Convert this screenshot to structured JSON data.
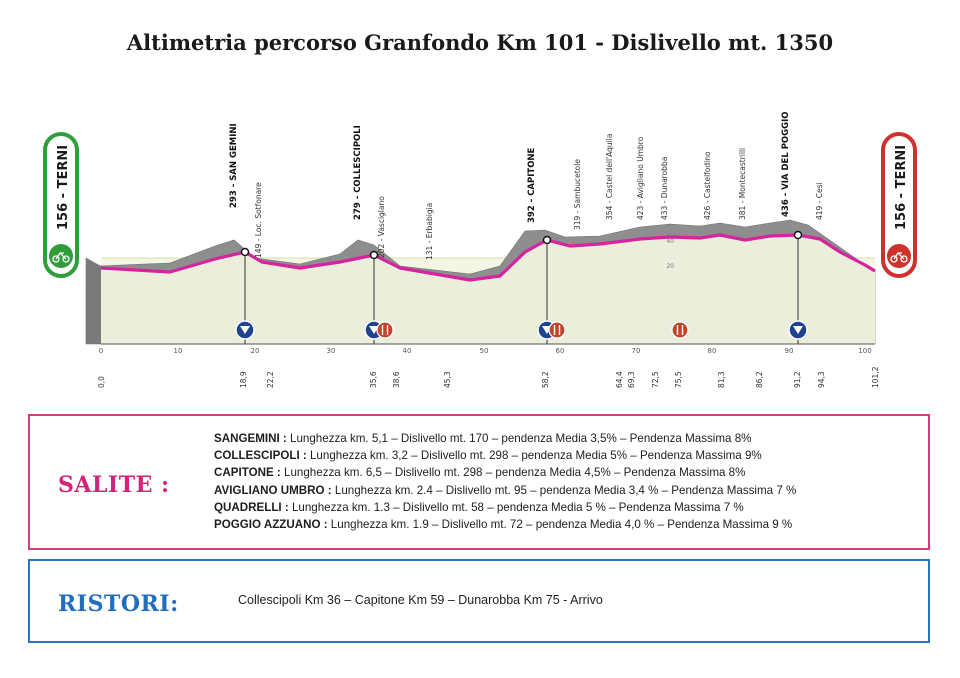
{
  "title": "Altimetria percorso Granfondo Km 101 - Dislivello mt. 1350",
  "profile": {
    "start_badge": "156 - TERNI",
    "finish_badge": "156 - TERNI",
    "colors": {
      "terrain": "#8e8e8e",
      "route": "#d6249f",
      "band": "#f2f6e2",
      "band_line": "#c9d88a",
      "refuel": "#f5a96a",
      "gpm": "#20428f",
      "start": "#2f9e3a",
      "finish": "#d0312d"
    },
    "tick_labels": [
      "0",
      "10",
      "20",
      "30",
      "40",
      "50",
      "60",
      "70",
      "80",
      "90",
      "100"
    ],
    "alt_scale": [
      "20",
      "40"
    ],
    "waypoints": [
      {
        "label": "0,0"
      },
      {
        "label": "293 - SAN GEMINI",
        "major": true
      },
      {
        "label": "149 - Loc. Sotfonare"
      },
      {
        "label": "18,9"
      },
      {
        "label": "22,2"
      },
      {
        "label": "279 - COLLESCIPOLI",
        "major": true
      },
      {
        "label": "35,6"
      },
      {
        "label": "202 - Vasciglano"
      },
      {
        "label": "38,6"
      },
      {
        "label": "131 - Erbabigia"
      },
      {
        "label": "45,3"
      },
      {
        "label": "392 - CAPITONE",
        "major": true
      },
      {
        "label": "58,2"
      },
      {
        "label": "319 - Sambucetole"
      },
      {
        "label": "354 - Castel dell'Aquila"
      },
      {
        "label": "64,4"
      },
      {
        "label": "423 - Avigliano Umbro"
      },
      {
        "label": "69,3"
      },
      {
        "label": "433 - Dunarobba"
      },
      {
        "label": "72,5"
      },
      {
        "label": "75,5"
      },
      {
        "label": "426 - Castelfodino"
      },
      {
        "label": "81,3"
      },
      {
        "label": "381 - Montecastrilli"
      },
      {
        "label": "86,2"
      },
      {
        "label": "436 - VIA DEL POGGIO",
        "major": true
      },
      {
        "label": "91,2"
      },
      {
        "label": "419 - Cesi"
      },
      {
        "label": "94,3"
      },
      {
        "label": "101,2"
      }
    ]
  },
  "salite": {
    "heading": "SALITE :",
    "items": [
      {
        "name": "SANGEMINI :",
        "text": " Lunghezza km. 5,1 – Dislivello mt. 170 – pendenza Media 3,5% – Pendenza Massima 8%"
      },
      {
        "name": "COLLESCIPOLI :",
        "text": " Lunghezza km. 3,2 – Dislivello mt. 298 – pendenza Media 5% – Pendenza Massima 9%"
      },
      {
        "name": "CAPITONE :",
        "text": " Lunghezza km. 6,5 – Dislivello mt. 298 – pendenza Media 4,5% – Pendenza Massima 8%"
      },
      {
        "name": "AVIGLIANO UMBRO :",
        "text": " Lunghezza km. 2.4 – Dislivello mt. 95 – pendenza Media 3,4 % – Pendenza Massima 7 %"
      },
      {
        "name": "QUADRELLI :",
        "text": " Lunghezza km. 1.3 – Dislivello mt. 58 – pendenza Media 5 % – Pendenza Massima 7 %"
      },
      {
        "name": "POGGIO AZZUANO :",
        "text": " Lunghezza km. 1.9 – Dislivello mt. 72 – pendenza Media 4,0 % – Pendenza Massima 9 %"
      }
    ]
  },
  "ristori": {
    "heading": "RISTORI:",
    "text": "Collescipoli Km 36 – Capitone Km 59 – Dunarobba Km 75 - Arrivo"
  }
}
